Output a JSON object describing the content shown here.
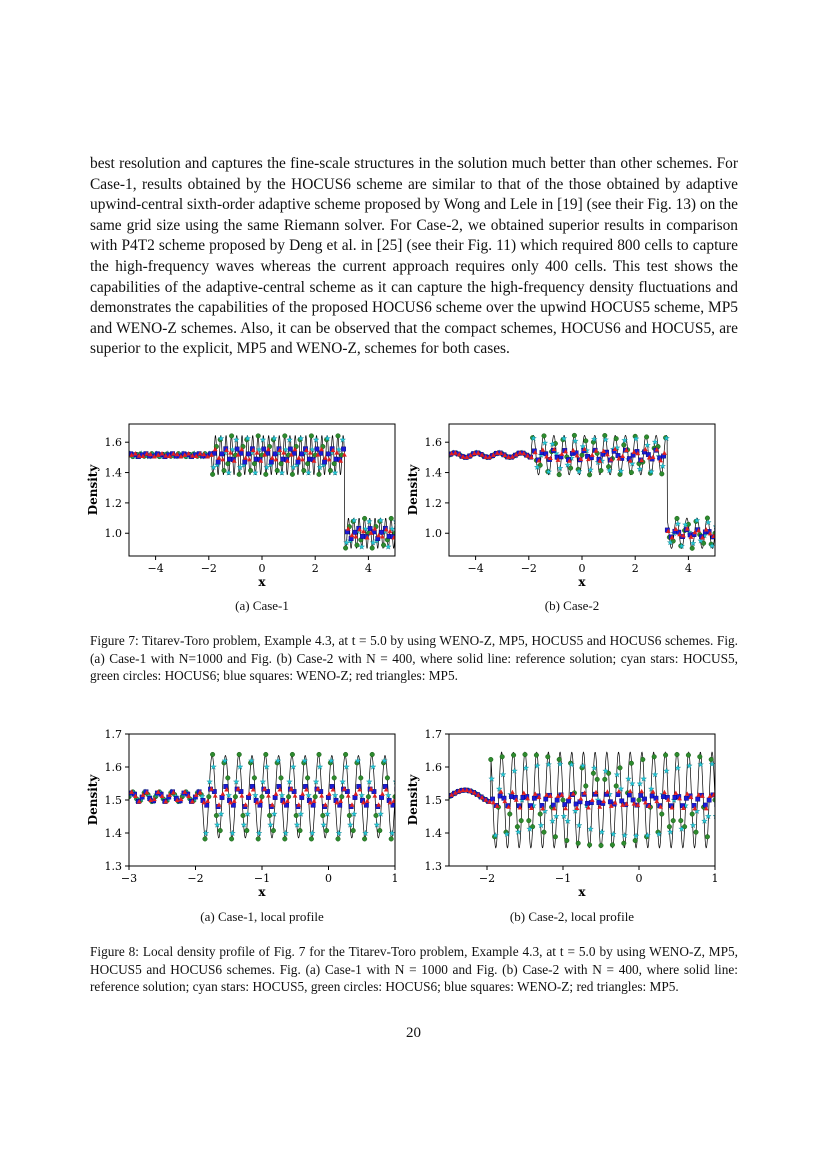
{
  "body_paragraph": "best resolution and captures the fine-scale structures in the solution much better than other schemes. For Case-1, results obtained by the HOCUS6 scheme are similar to that of the those obtained by adaptive upwind-central sixth-order adaptive scheme proposed by Wong and Lele in [19] (see their Fig. 13) on the same grid size using the same Riemann solver. For Case-2, we obtained superior results in comparison with P4T2 scheme proposed by Deng et al. in [25] (see their Fig. 11) which required 800 cells to capture the high-frequency waves whereas the current approach requires only 400 cells. This test shows the capabilities of the adaptive-central scheme as it can capture the high-frequency density fluctuations and demonstrates the capabilities of the proposed HOCUS6 scheme over the upwind HOCUS5 scheme, MP5 and WENO-Z schemes. Also, it can be observed that the compact schemes, HOCUS6 and HOCUS5, are superior to the explicit, MP5 and WENO-Z, schemes for both cases.",
  "figure7": {
    "sub_a": "(a) Case-1",
    "sub_b": "(b) Case-2",
    "caption": "Figure 7: Titarev-Toro problem, Example 4.3, at t = 5.0 by using WENO-Z, MP5, HOCUS5 and HOCUS6 schemes. Fig. (a) Case-1 with N=1000 and Fig. (b) Case-2 with N = 400, where solid line: reference solution; cyan stars: HOCUS5, green circles: HOCUS6; blue squares: WENO-Z; red triangles: MP5."
  },
  "figure8": {
    "sub_a": "(a) Case-1, local profile",
    "sub_b": "(b) Case-2, local profile",
    "caption": "Figure 8: Local density profile of Fig. 7 for the Titarev-Toro problem, Example 4.3, at t = 5.0 by using WENO-Z, MP5, HOCUS5 and HOCUS6 schemes. Fig. (a) Case-1 with N = 1000 and Fig. (b) Case-2 with N = 400, where solid line: reference solution; cyan stars: HOCUS5, green circles: HOCUS6; blue squares: WENO-Z; red triangles: MP5."
  },
  "page_number": "20",
  "colors": {
    "reference": "#000000",
    "hocus5": "#22c7d6",
    "hocus6": "#2e8b2e",
    "wenoz": "#1a1ad6",
    "mp5": "#e02020"
  },
  "chart_data": [
    {
      "id": "fig7a",
      "type": "line",
      "title": "",
      "xlabel": "x",
      "ylabel": "Density",
      "xlim": [
        -5,
        5
      ],
      "ylim": [
        0.85,
        1.72
      ],
      "xticks": [
        -4,
        -2,
        0,
        2,
        4
      ],
      "yticks": [
        1.0,
        1.2,
        1.4,
        1.6
      ],
      "xtick_labels": [
        "−4",
        "−2",
        "0",
        "2",
        "4"
      ],
      "ytick_labels": [
        "1.0",
        "1.2",
        "1.4",
        "1.6"
      ],
      "series": [
        {
          "key": "reference",
          "profile": {
            "pre_level": 1.515,
            "pre_amp": 0.01,
            "pre_freq": 5,
            "shock1_x": -1.9,
            "post_mean": 1.515,
            "post_amp": 0.13,
            "post_freq": 5,
            "contact_x": 3.1,
            "right_mean": 1.0,
            "right_amp": 0.1,
            "right_freq": 5
          }
        },
        {
          "key": "hocus5",
          "amp_scale": 0.9,
          "marker": "star"
        },
        {
          "key": "hocus6",
          "amp_scale": 1.0,
          "marker": "circle"
        },
        {
          "key": "wenoz",
          "amp_scale": 0.35,
          "marker": "square"
        },
        {
          "key": "mp5",
          "amp_scale": 0.3,
          "marker": "triangle"
        }
      ]
    },
    {
      "id": "fig7b",
      "type": "line",
      "title": "",
      "xlabel": "x",
      "ylabel": "Density",
      "xlim": [
        -5,
        5
      ],
      "ylim": [
        0.85,
        1.72
      ],
      "xticks": [
        -4,
        -2,
        0,
        2,
        4
      ],
      "yticks": [
        1.0,
        1.2,
        1.4,
        1.6
      ],
      "xtick_labels": [
        "−4",
        "−2",
        "0",
        "2",
        "4"
      ],
      "ytick_labels": [
        "1.0",
        "1.2",
        "1.4",
        "1.6"
      ],
      "series": [
        {
          "key": "reference",
          "profile": {
            "pre_level": 1.515,
            "pre_amp": 0.015,
            "pre_freq": 1.2,
            "shock1_x": -1.9,
            "post_mean": 1.515,
            "post_amp": 0.13,
            "post_freq": 2.6,
            "contact_x": 3.2,
            "right_mean": 1.0,
            "right_amp": 0.1,
            "right_freq": 2.6
          }
        },
        {
          "key": "hocus5",
          "amp_scale": 0.85,
          "marker": "star"
        },
        {
          "key": "hocus6",
          "amp_scale": 1.0,
          "marker": "circle"
        },
        {
          "key": "wenoz",
          "amp_scale": 0.25,
          "marker": "square"
        },
        {
          "key": "mp5",
          "amp_scale": 0.3,
          "marker": "triangle"
        }
      ]
    },
    {
      "id": "fig8a",
      "type": "line",
      "title": "",
      "xlabel": "x",
      "ylabel": "Density",
      "xlim": [
        -3,
        1
      ],
      "ylim": [
        1.3,
        1.7
      ],
      "xticks": [
        -3,
        -2,
        -1,
        0,
        1
      ],
      "yticks": [
        1.3,
        1.4,
        1.5,
        1.6,
        1.7
      ],
      "xtick_labels": [
        "−3",
        "−2",
        "−1",
        "0",
        "1"
      ],
      "ytick_labels": [
        "1.3",
        "1.4",
        "1.5",
        "1.6",
        "1.7"
      ],
      "series": [
        {
          "key": "reference",
          "profile": {
            "pre_level": 1.51,
            "pre_amp": 0.015,
            "pre_freq": 5,
            "shock1_x": -1.9,
            "post_mean": 1.51,
            "post_amp": 0.125,
            "post_freq": 5,
            "contact_x": 5,
            "right_mean": 1.0,
            "right_amp": 0.1,
            "right_freq": 5
          }
        },
        {
          "key": "hocus5",
          "amp_scale": 0.9,
          "marker": "star"
        },
        {
          "key": "hocus6",
          "amp_scale": 1.05,
          "marker": "circle"
        },
        {
          "key": "wenoz",
          "amp_scale": 0.25,
          "marker": "square"
        },
        {
          "key": "mp5",
          "amp_scale": 0.2,
          "marker": "triangle"
        }
      ]
    },
    {
      "id": "fig8b",
      "type": "line",
      "title": "",
      "xlabel": "x",
      "ylabel": "Density",
      "xlim": [
        -2.5,
        1
      ],
      "ylim": [
        1.3,
        1.7
      ],
      "xticks": [
        -2,
        -1,
        0,
        1
      ],
      "yticks": [
        1.3,
        1.4,
        1.5,
        1.6,
        1.7
      ],
      "xtick_labels": [
        "−2",
        "−1",
        "0",
        "1"
      ],
      "ytick_labels": [
        "1.3",
        "1.4",
        "1.5",
        "1.6",
        "1.7"
      ],
      "series": [
        {
          "key": "reference",
          "profile": {
            "pre_level": 1.51,
            "pre_amp": 0.02,
            "pre_freq": 1.2,
            "shock1_x": -1.95,
            "post_mean": 1.5,
            "post_amp": 0.145,
            "post_freq": 6.5,
            "contact_x": 5,
            "right_mean": 1.0,
            "right_amp": 0.1,
            "right_freq": 6.5
          }
        },
        {
          "key": "hocus5",
          "amp_scale": 0.75,
          "marker": "star"
        },
        {
          "key": "hocus6",
          "amp_scale": 0.95,
          "marker": "circle"
        },
        {
          "key": "wenoz",
          "amp_scale": 0.12,
          "marker": "square"
        },
        {
          "key": "mp5",
          "amp_scale": 0.18,
          "marker": "triangle"
        }
      ]
    }
  ]
}
